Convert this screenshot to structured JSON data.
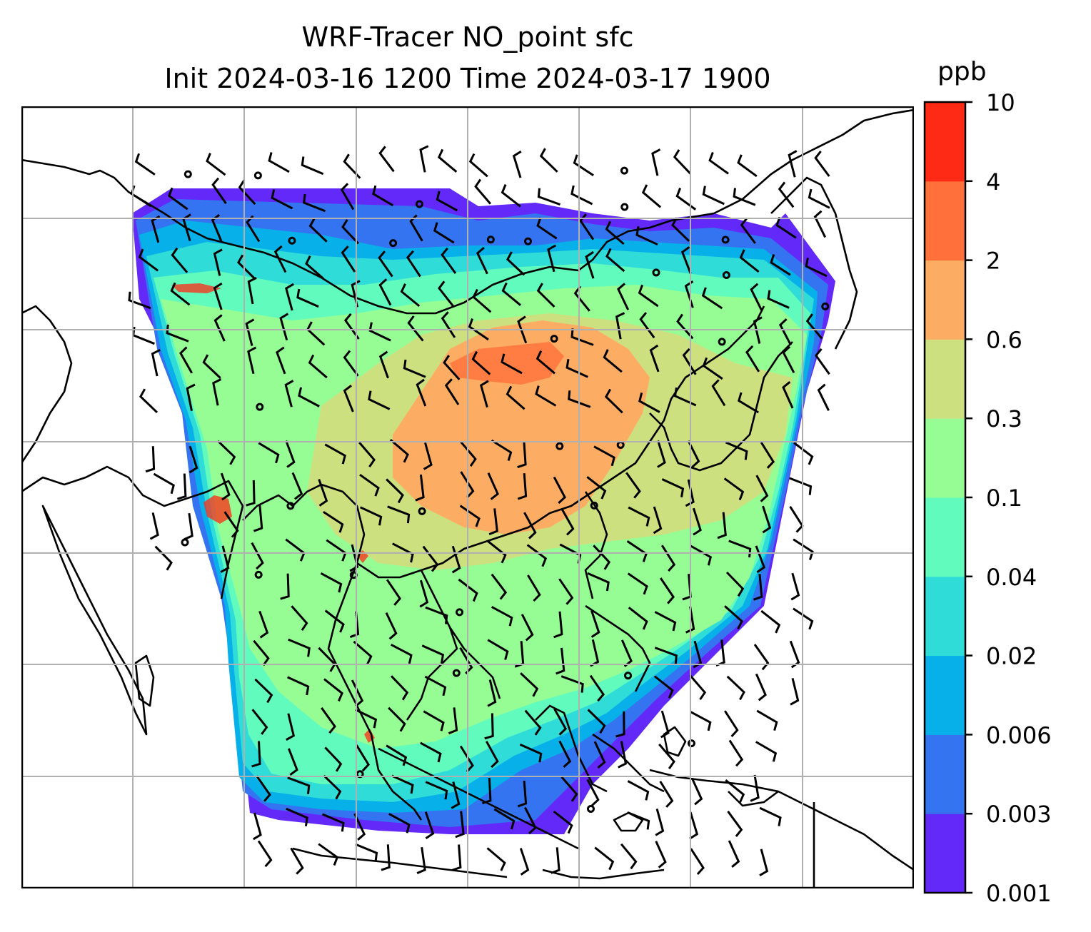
{
  "title": {
    "line1": "WRF-Tracer NO_point sfc",
    "line2": "Init 2024-03-16 1200 Time 2024-03-17 1900"
  },
  "chart_data": {
    "type": "heatmap",
    "map": "filled-contour tracer field over Asia with wind barbs, coastlines and lat/lon gridlines",
    "variable": "NO_point",
    "level": "sfc",
    "init_time": "2024-03-16 1200",
    "valid_time": "2024-03-17 1900",
    "units": "ppb",
    "colorbar": {
      "levels": [
        "0.001",
        "0.003",
        "0.006",
        "0.02",
        "0.04",
        "0.1",
        "0.3",
        "0.6",
        "2",
        "4",
        "10"
      ],
      "colors": [
        "#6329f9",
        "#3474f1",
        "#07b0e9",
        "#2fdcd8",
        "#60fbbd",
        "#96fd95",
        "#cde07f",
        "#fdad63",
        "#ff703a",
        "#ff2a15"
      ]
    },
    "grid": true,
    "overlays": [
      "wind barbs",
      "coastlines",
      "country borders"
    ]
  }
}
